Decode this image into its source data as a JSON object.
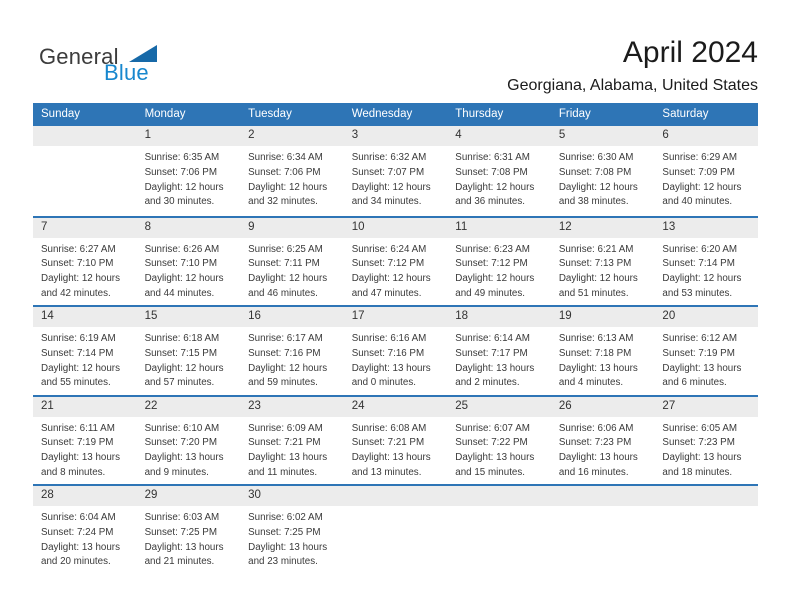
{
  "logo": {
    "general": "General",
    "blue": "Blue",
    "triangle_icon": "logo-triangle-icon"
  },
  "header": {
    "title": "April 2024",
    "subtitle": "Georgiana, Alabama, United States"
  },
  "weekdays": [
    "Sunday",
    "Monday",
    "Tuesday",
    "Wednesday",
    "Thursday",
    "Friday",
    "Saturday"
  ],
  "colors": {
    "header_blue": "#2E75B6",
    "week_divider_blue": "#2E75B6",
    "day_band_gray": "#ECECEC",
    "logo_blue": "#1787CE",
    "logo_triangle_blue": "#1769A8",
    "text_dark": "#3A3A3A"
  },
  "weeks": [
    [
      null,
      {
        "number": "1",
        "sunrise": "Sunrise: 6:35 AM",
        "sunset": "Sunset: 7:06 PM",
        "daylight": "Daylight: 12 hours and 30 minutes."
      },
      {
        "number": "2",
        "sunrise": "Sunrise: 6:34 AM",
        "sunset": "Sunset: 7:06 PM",
        "daylight": "Daylight: 12 hours and 32 minutes."
      },
      {
        "number": "3",
        "sunrise": "Sunrise: 6:32 AM",
        "sunset": "Sunset: 7:07 PM",
        "daylight": "Daylight: 12 hours and 34 minutes."
      },
      {
        "number": "4",
        "sunrise": "Sunrise: 6:31 AM",
        "sunset": "Sunset: 7:08 PM",
        "daylight": "Daylight: 12 hours and 36 minutes."
      },
      {
        "number": "5",
        "sunrise": "Sunrise: 6:30 AM",
        "sunset": "Sunset: 7:08 PM",
        "daylight": "Daylight: 12 hours and 38 minutes."
      },
      {
        "number": "6",
        "sunrise": "Sunrise: 6:29 AM",
        "sunset": "Sunset: 7:09 PM",
        "daylight": "Daylight: 12 hours and 40 minutes."
      }
    ],
    [
      {
        "number": "7",
        "sunrise": "Sunrise: 6:27 AM",
        "sunset": "Sunset: 7:10 PM",
        "daylight": "Daylight: 12 hours and 42 minutes."
      },
      {
        "number": "8",
        "sunrise": "Sunrise: 6:26 AM",
        "sunset": "Sunset: 7:10 PM",
        "daylight": "Daylight: 12 hours and 44 minutes."
      },
      {
        "number": "9",
        "sunrise": "Sunrise: 6:25 AM",
        "sunset": "Sunset: 7:11 PM",
        "daylight": "Daylight: 12 hours and 46 minutes."
      },
      {
        "number": "10",
        "sunrise": "Sunrise: 6:24 AM",
        "sunset": "Sunset: 7:12 PM",
        "daylight": "Daylight: 12 hours and 47 minutes."
      },
      {
        "number": "11",
        "sunrise": "Sunrise: 6:23 AM",
        "sunset": "Sunset: 7:12 PM",
        "daylight": "Daylight: 12 hours and 49 minutes."
      },
      {
        "number": "12",
        "sunrise": "Sunrise: 6:21 AM",
        "sunset": "Sunset: 7:13 PM",
        "daylight": "Daylight: 12 hours and 51 minutes."
      },
      {
        "number": "13",
        "sunrise": "Sunrise: 6:20 AM",
        "sunset": "Sunset: 7:14 PM",
        "daylight": "Daylight: 12 hours and 53 minutes."
      }
    ],
    [
      {
        "number": "14",
        "sunrise": "Sunrise: 6:19 AM",
        "sunset": "Sunset: 7:14 PM",
        "daylight": "Daylight: 12 hours and 55 minutes."
      },
      {
        "number": "15",
        "sunrise": "Sunrise: 6:18 AM",
        "sunset": "Sunset: 7:15 PM",
        "daylight": "Daylight: 12 hours and 57 minutes."
      },
      {
        "number": "16",
        "sunrise": "Sunrise: 6:17 AM",
        "sunset": "Sunset: 7:16 PM",
        "daylight": "Daylight: 12 hours and 59 minutes."
      },
      {
        "number": "17",
        "sunrise": "Sunrise: 6:16 AM",
        "sunset": "Sunset: 7:16 PM",
        "daylight": "Daylight: 13 hours and 0 minutes."
      },
      {
        "number": "18",
        "sunrise": "Sunrise: 6:14 AM",
        "sunset": "Sunset: 7:17 PM",
        "daylight": "Daylight: 13 hours and 2 minutes."
      },
      {
        "number": "19",
        "sunrise": "Sunrise: 6:13 AM",
        "sunset": "Sunset: 7:18 PM",
        "daylight": "Daylight: 13 hours and 4 minutes."
      },
      {
        "number": "20",
        "sunrise": "Sunrise: 6:12 AM",
        "sunset": "Sunset: 7:19 PM",
        "daylight": "Daylight: 13 hours and 6 minutes."
      }
    ],
    [
      {
        "number": "21",
        "sunrise": "Sunrise: 6:11 AM",
        "sunset": "Sunset: 7:19 PM",
        "daylight": "Daylight: 13 hours and 8 minutes."
      },
      {
        "number": "22",
        "sunrise": "Sunrise: 6:10 AM",
        "sunset": "Sunset: 7:20 PM",
        "daylight": "Daylight: 13 hours and 9 minutes."
      },
      {
        "number": "23",
        "sunrise": "Sunrise: 6:09 AM",
        "sunset": "Sunset: 7:21 PM",
        "daylight": "Daylight: 13 hours and 11 minutes."
      },
      {
        "number": "24",
        "sunrise": "Sunrise: 6:08 AM",
        "sunset": "Sunset: 7:21 PM",
        "daylight": "Daylight: 13 hours and 13 minutes."
      },
      {
        "number": "25",
        "sunrise": "Sunrise: 6:07 AM",
        "sunset": "Sunset: 7:22 PM",
        "daylight": "Daylight: 13 hours and 15 minutes."
      },
      {
        "number": "26",
        "sunrise": "Sunrise: 6:06 AM",
        "sunset": "Sunset: 7:23 PM",
        "daylight": "Daylight: 13 hours and 16 minutes."
      },
      {
        "number": "27",
        "sunrise": "Sunrise: 6:05 AM",
        "sunset": "Sunset: 7:23 PM",
        "daylight": "Daylight: 13 hours and 18 minutes."
      }
    ],
    [
      {
        "number": "28",
        "sunrise": "Sunrise: 6:04 AM",
        "sunset": "Sunset: 7:24 PM",
        "daylight": "Daylight: 13 hours and 20 minutes."
      },
      {
        "number": "29",
        "sunrise": "Sunrise: 6:03 AM",
        "sunset": "Sunset: 7:25 PM",
        "daylight": "Daylight: 13 hours and 21 minutes."
      },
      {
        "number": "30",
        "sunrise": "Sunrise: 6:02 AM",
        "sunset": "Sunset: 7:25 PM",
        "daylight": "Daylight: 13 hours and 23 minutes."
      },
      null,
      null,
      null,
      null
    ]
  ]
}
